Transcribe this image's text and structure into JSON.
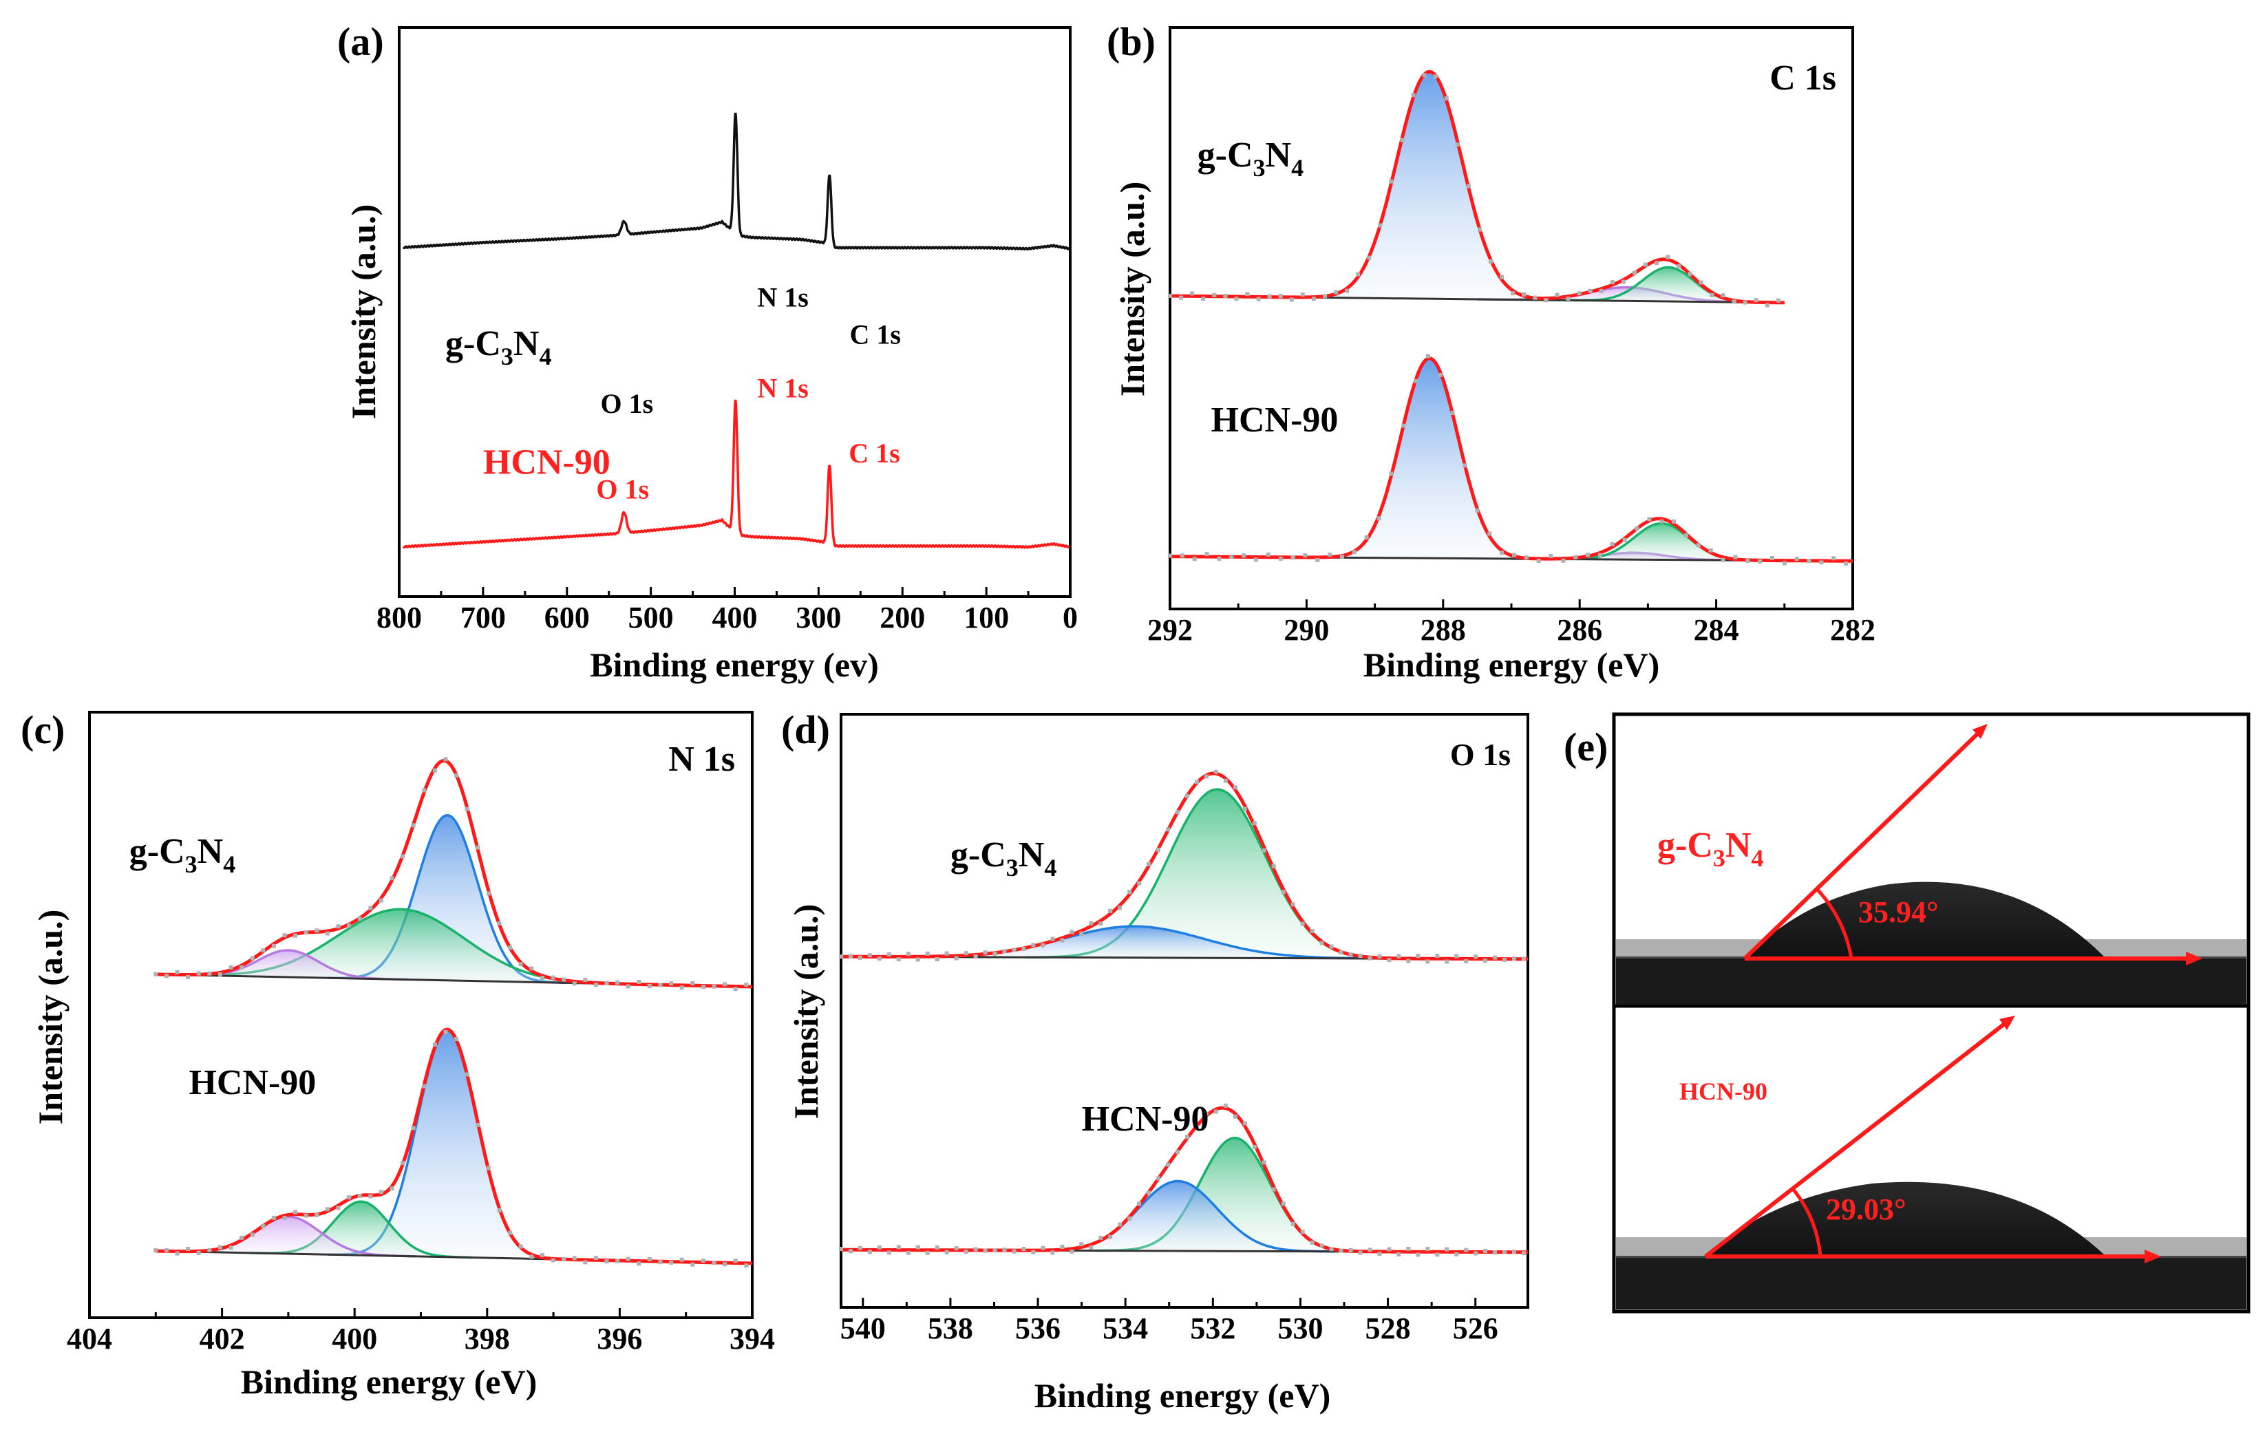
{
  "colors": {
    "axis": "#000000",
    "black_trace": "#111111",
    "red": "#ff1a1a",
    "red_text": "#ff2020",
    "blue": "#1f7fe0",
    "green": "#18b26b",
    "purple": "#b57be0",
    "baseline": "#333333",
    "dots": "#b0b0b0"
  },
  "chart_data": [
    {
      "panel": "(a)",
      "type": "line",
      "title": "",
      "xlabel": "Binding energy (ev)",
      "ylabel": "Intensity (a.u.)",
      "xlim": [
        800,
        0
      ],
      "xticks": [
        "800",
        "700",
        "600",
        "500",
        "400",
        "300",
        "200",
        "100",
        "0"
      ],
      "series": [
        {
          "name": "g-C3N4",
          "color": "black",
          "offset": 1.0,
          "background": [
            [
              800,
              0.0
            ],
            [
              700,
              0.05
            ],
            [
              600,
              0.09
            ],
            [
              540,
              0.12
            ],
            [
              500,
              0.15
            ],
            [
              440,
              0.19
            ],
            [
              415,
              0.25
            ],
            [
              405,
              0.18
            ],
            [
              398,
              0.12
            ],
            [
              380,
              0.1
            ],
            [
              320,
              0.08
            ],
            [
              295,
              0.05
            ],
            [
              285,
              0.0
            ],
            [
              200,
              0.0
            ],
            [
              100,
              0.0
            ],
            [
              50,
              -0.01
            ],
            [
              20,
              0.02
            ],
            [
              0,
              -0.01
            ]
          ],
          "peaks": [
            {
              "center": 532,
              "height": 0.13,
              "width": 3
            },
            {
              "center": 399,
              "height": 1.18,
              "width": 2.2
            },
            {
              "center": 287,
              "height": 0.7,
              "width": 2.2
            }
          ]
        },
        {
          "name": "HCN-90",
          "color": "red",
          "offset": 0.0,
          "background": [
            [
              800,
              0.0
            ],
            [
              700,
              0.05
            ],
            [
              600,
              0.1
            ],
            [
              540,
              0.13
            ],
            [
              500,
              0.16
            ],
            [
              440,
              0.21
            ],
            [
              415,
              0.26
            ],
            [
              405,
              0.18
            ],
            [
              398,
              0.12
            ],
            [
              380,
              0.1
            ],
            [
              320,
              0.08
            ],
            [
              295,
              0.05
            ],
            [
              285,
              0.01
            ],
            [
              200,
              0.01
            ],
            [
              100,
              0.01
            ],
            [
              50,
              0.0
            ],
            [
              20,
              0.03
            ],
            [
              0,
              0.0
            ]
          ],
          "peaks": [
            {
              "center": 532,
              "height": 0.2,
              "width": 3
            },
            {
              "center": 399,
              "height": 1.3,
              "width": 2.2
            },
            {
              "center": 287,
              "height": 0.78,
              "width": 2.2
            }
          ]
        }
      ],
      "labels": [
        {
          "id": "a_title",
          "text": "(a)",
          "role": "panel"
        },
        {
          "id": "a_g",
          "text": "g-C3N4",
          "role": "sample",
          "color": "black",
          "x": 745,
          "y": 1.86
        },
        {
          "id": "a_o1",
          "text": "O 1s",
          "role": "peak",
          "color": "black",
          "x": 560,
          "y": 1.3
        },
        {
          "id": "a_n1",
          "text": "N 1s",
          "role": "peak",
          "color": "black",
          "x": 373,
          "y": 2.33
        },
        {
          "id": "a_c1",
          "text": "C 1s",
          "role": "peak",
          "color": "black",
          "x": 263,
          "y": 1.97
        },
        {
          "id": "a_h",
          "text": "HCN-90",
          "role": "sample",
          "color": "red",
          "x": 700,
          "y": 0.71
        },
        {
          "id": "a_o2",
          "text": "O 1s",
          "role": "peak",
          "color": "red",
          "x": 565,
          "y": 0.47
        },
        {
          "id": "a_n2",
          "text": "N 1s",
          "role": "peak",
          "color": "red",
          "x": 373,
          "y": 1.45
        },
        {
          "id": "a_c2",
          "text": "C 1s",
          "role": "peak",
          "color": "red",
          "x": 264,
          "y": 0.82
        }
      ]
    },
    {
      "panel": "(b)",
      "type": "line",
      "title": "C 1s",
      "xlabel": "Binding energy (eV)",
      "ylabel": "Intensity (a.u.)",
      "xlim": [
        292,
        282
      ],
      "xticks": [
        "292",
        "290",
        "288",
        "286",
        "284",
        "282"
      ],
      "samples": [
        {
          "name": "g-C3N4",
          "offset": 1.15,
          "range": [
            292,
            283
          ],
          "baseline": [
            0.0,
            -0.03
          ],
          "components": [
            {
              "center": 288.2,
              "height": 1.0,
              "width": 0.48,
              "color": "blue"
            },
            {
              "center": 285.3,
              "height": 0.06,
              "width": 0.55,
              "color": "purple"
            },
            {
              "center": 284.7,
              "height": 0.15,
              "width": 0.38,
              "color": "green"
            }
          ]
        },
        {
          "name": "HCN-90",
          "offset": 0.0,
          "range": [
            292,
            282
          ],
          "baseline": [
            0.01,
            -0.01
          ],
          "components": [
            {
              "center": 288.2,
              "height": 0.88,
              "width": 0.42,
              "color": "blue"
            },
            {
              "center": 285.2,
              "height": 0.03,
              "width": 0.45,
              "color": "purple"
            },
            {
              "center": 284.8,
              "height": 0.16,
              "width": 0.4,
              "color": "green"
            }
          ]
        }
      ],
      "labels": [
        {
          "id": "b_title",
          "text": "(b)",
          "role": "panel"
        },
        {
          "id": "b_c",
          "text": "C 1s",
          "role": "corner"
        },
        {
          "id": "b_g",
          "text": "g-C3N4",
          "role": "sample",
          "x": 291.6,
          "y": 1.72
        },
        {
          "id": "b_h",
          "text": "HCN-90",
          "role": "sample",
          "x": 291.4,
          "y": 0.56
        }
      ]
    },
    {
      "panel": "(c)",
      "type": "line",
      "title": "N 1s",
      "xlabel": "Binding energy (eV)",
      "ylabel": "Intensity (a.u.)",
      "xlim": [
        404,
        394
      ],
      "xticks": [
        "404",
        "402",
        "400",
        "398",
        "396",
        "394"
      ],
      "samples": [
        {
          "name": "g-C3N4",
          "offset": 1.17,
          "range": [
            403,
            394
          ],
          "baseline": [
            0.04,
            -0.02
          ],
          "components": [
            {
              "center": 398.6,
              "height": 0.8,
              "width": 0.45,
              "color": "blue"
            },
            {
              "center": 399.3,
              "height": 0.34,
              "width": 0.95,
              "color": "green"
            },
            {
              "center": 401.0,
              "height": 0.13,
              "width": 0.45,
              "color": "purple"
            }
          ]
        },
        {
          "name": "HCN-90",
          "offset": 0.0,
          "range": [
            403,
            394
          ],
          "baseline": [
            0.04,
            -0.02
          ],
          "components": [
            {
              "center": 398.6,
              "height": 1.1,
              "width": 0.45,
              "color": "blue"
            },
            {
              "center": 399.9,
              "height": 0.26,
              "width": 0.42,
              "color": "green"
            },
            {
              "center": 401.0,
              "height": 0.18,
              "width": 0.48,
              "color": "purple"
            }
          ]
        }
      ],
      "labels": [
        {
          "id": "c_title",
          "text": "(c)",
          "role": "panel"
        },
        {
          "id": "c_n",
          "text": "N 1s",
          "role": "corner"
        },
        {
          "id": "c_g",
          "text": "g-C3N4",
          "role": "sample",
          "x": 403.4,
          "y": 1.75
        },
        {
          "id": "c_h",
          "text": "HCN-90",
          "role": "sample",
          "x": 402.5,
          "y": 0.8
        }
      ]
    },
    {
      "panel": "(d)",
      "type": "line",
      "title": "O 1s",
      "xlabel": "Binding energy (eV)",
      "ylabel": "Intensity (a.u.)",
      "xlim": [
        540.5,
        524.8
      ],
      "xticks": [
        "540",
        "538",
        "536",
        "534",
        "532",
        "530",
        "528",
        "526"
      ],
      "samples": [
        {
          "name": "g-C3N4",
          "offset": 1.0,
          "range": [
            540.5,
            524.8
          ],
          "baseline": [
            0.005,
            -0.005
          ],
          "components": [
            {
              "center": 531.9,
              "height": 0.7,
              "width": 1.1,
              "color": "green"
            },
            {
              "center": 533.8,
              "height": 0.13,
              "width": 1.6,
              "color": "blue"
            }
          ]
        },
        {
          "name": "HCN-90",
          "offset": 0.0,
          "range": [
            540.5,
            524.8
          ],
          "baseline": [
            0.005,
            -0.005
          ],
          "components": [
            {
              "center": 531.5,
              "height": 0.47,
              "width": 0.8,
              "color": "green"
            },
            {
              "center": 532.8,
              "height": 0.29,
              "width": 0.9,
              "color": "blue"
            }
          ]
        }
      ],
      "labels": [
        {
          "id": "d_title",
          "text": "(d)",
          "role": "panel"
        },
        {
          "id": "d_o",
          "text": "O 1s",
          "role": "corner"
        },
        {
          "id": "d_g",
          "text": "g-C3N4",
          "role": "sample",
          "x": 538.0,
          "y": 1.38
        },
        {
          "id": "d_h",
          "text": "HCN-90",
          "role": "sample",
          "x": 535.0,
          "y": 0.5
        }
      ]
    }
  ],
  "panel_e": {
    "label": "(e)",
    "top": {
      "sample": "g-C3N4",
      "angle_text": "35.94°"
    },
    "bottom": {
      "sample": "HCN-90",
      "angle_text": "29.03°"
    }
  }
}
